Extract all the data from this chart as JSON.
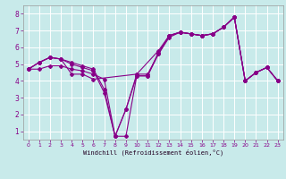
{
  "xlabel": "Windchill (Refroidissement éolien,°C)",
  "background_color": "#c8eaea",
  "grid_color": "#ffffff",
  "line_color": "#880088",
  "xlim_left": -0.5,
  "xlim_right": 23.5,
  "ylim_bottom": 0.5,
  "ylim_top": 8.5,
  "xticks": [
    0,
    1,
    2,
    3,
    4,
    5,
    6,
    7,
    8,
    9,
    10,
    11,
    12,
    13,
    14,
    15,
    16,
    17,
    18,
    19,
    20,
    21,
    22,
    23
  ],
  "yticks": [
    1,
    2,
    3,
    4,
    5,
    6,
    7,
    8
  ],
  "line1_x": [
    0,
    1,
    2,
    3,
    4,
    5,
    6,
    10,
    12,
    13,
    14,
    15,
    16,
    17,
    18,
    19,
    20,
    21,
    22,
    23
  ],
  "line1_y": [
    4.7,
    5.1,
    5.4,
    5.3,
    4.4,
    4.4,
    4.1,
    4.4,
    5.8,
    6.7,
    6.9,
    6.8,
    6.7,
    6.8,
    7.2,
    7.8,
    4.0,
    4.5,
    4.8,
    4.0
  ],
  "line2_x": [
    0,
    1,
    2,
    3,
    4,
    5,
    6,
    7,
    8,
    9,
    10,
    11,
    12,
    13,
    14,
    15,
    16,
    17,
    18,
    19,
    20,
    21,
    22,
    23
  ],
  "line2_y": [
    4.7,
    5.1,
    5.4,
    5.3,
    5.0,
    4.8,
    4.6,
    3.3,
    0.7,
    0.7,
    4.3,
    4.3,
    5.7,
    6.7,
    6.9,
    6.8,
    6.7,
    6.8,
    7.2,
    7.8,
    4.0,
    4.5,
    4.8,
    4.0
  ],
  "line3_x": [
    0,
    1,
    2,
    3,
    4,
    5,
    6,
    7,
    8,
    9,
    10,
    11,
    12,
    13,
    14,
    15,
    16,
    17,
    18,
    19,
    20,
    21,
    22,
    23
  ],
  "line3_y": [
    4.7,
    5.1,
    5.4,
    5.3,
    5.1,
    4.9,
    4.7,
    3.5,
    0.7,
    2.3,
    4.3,
    4.3,
    5.6,
    6.7,
    6.9,
    6.8,
    6.7,
    6.8,
    7.2,
    7.8,
    4.0,
    4.5,
    4.8,
    4.0
  ],
  "line4_x": [
    0,
    1,
    2,
    3,
    4,
    5,
    6,
    7,
    8,
    9,
    10,
    11,
    12,
    13,
    14,
    15,
    16,
    17,
    18,
    19,
    20,
    21,
    22,
    23
  ],
  "line4_y": [
    4.7,
    4.7,
    4.9,
    4.9,
    4.7,
    4.6,
    4.4,
    4.1,
    0.7,
    2.3,
    4.4,
    4.4,
    5.6,
    6.6,
    6.9,
    6.8,
    6.7,
    6.8,
    7.2,
    7.8,
    4.0,
    4.5,
    4.8,
    4.0
  ]
}
